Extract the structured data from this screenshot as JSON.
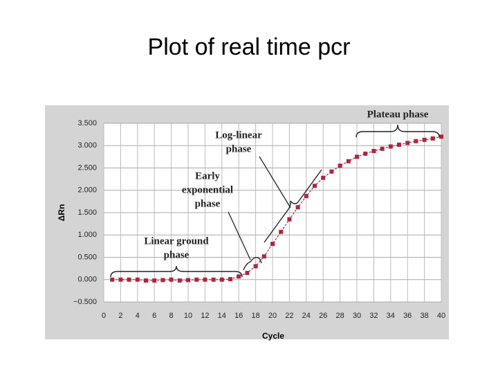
{
  "chart_data": {
    "type": "line",
    "title": "Plot of real time pcr",
    "x_label": "Cycle",
    "y_label": "ΔRn",
    "xlim": [
      0,
      40
    ],
    "xticks": [
      0,
      2,
      4,
      6,
      8,
      10,
      12,
      14,
      16,
      18,
      20,
      22,
      24,
      26,
      28,
      30,
      32,
      34,
      36,
      38,
      40
    ],
    "ylim": [
      -0.5,
      3.5
    ],
    "yticks": [
      {
        "value": -0.5,
        "label": "−0.500"
      },
      {
        "value": 0,
        "label": "0.000"
      },
      {
        "value": 0.5,
        "label": "0.500"
      },
      {
        "value": 1,
        "label": "1.000"
      },
      {
        "value": 1.5,
        "label": "1.500"
      },
      {
        "value": 2,
        "label": "2.000"
      },
      {
        "value": 2.5,
        "label": "2.500"
      },
      {
        "value": 3,
        "label": "3.000"
      },
      {
        "value": 3.5,
        "label": "3.500"
      }
    ],
    "grid": true,
    "x": [
      1,
      2,
      3,
      4,
      5,
      6,
      7,
      8,
      9,
      10,
      11,
      12,
      13,
      14,
      15,
      16,
      17,
      18,
      19,
      20,
      21,
      22,
      23,
      24,
      25,
      26,
      27,
      28,
      29,
      30,
      31,
      32,
      33,
      34,
      35,
      36,
      37,
      38,
      39,
      40
    ],
    "series": [
      {
        "color": "#b3233f",
        "values": [
          0.0,
          0.0,
          0.0,
          0.0,
          -0.02,
          -0.02,
          -0.01,
          0.0,
          -0.02,
          -0.01,
          0.0,
          0.0,
          0.0,
          0.0,
          0.01,
          0.07,
          0.15,
          0.3,
          0.52,
          0.8,
          1.07,
          1.35,
          1.62,
          1.87,
          2.1,
          2.28,
          2.42,
          2.55,
          2.65,
          2.75,
          2.82,
          2.88,
          2.93,
          2.98,
          3.02,
          3.06,
          3.1,
          3.13,
          3.16,
          3.2
        ]
      }
    ],
    "annotations": [
      [
        "Plateau phase"
      ],
      [
        "Log-linear",
        "phase"
      ],
      [
        "Early",
        "exponential",
        "phase"
      ],
      [
        "Linear ground",
        "phase"
      ]
    ]
  }
}
